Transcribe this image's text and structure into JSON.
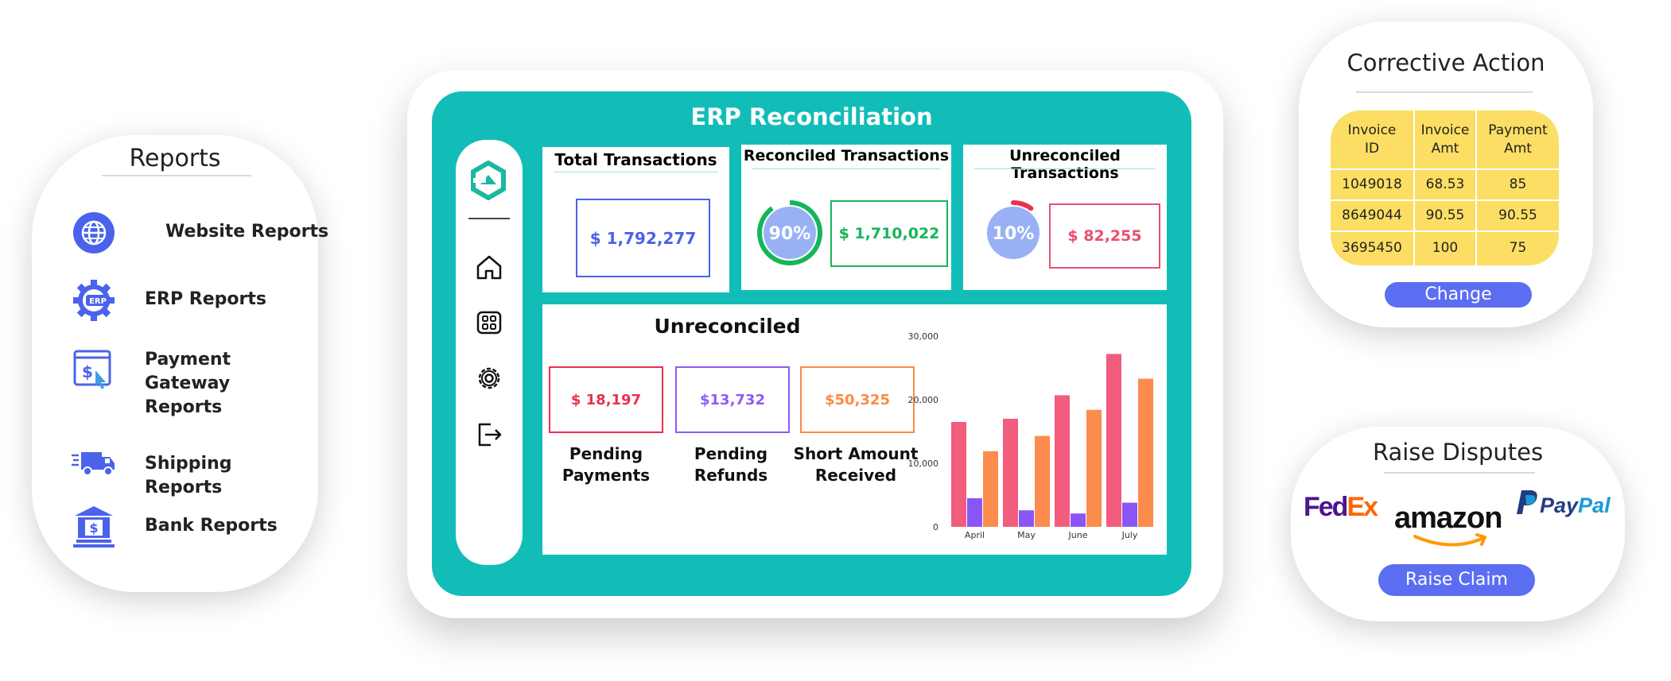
{
  "reports": {
    "title": "Reports",
    "items": [
      {
        "label": "Website Reports",
        "icon": "globe-icon"
      },
      {
        "label": "ERP Reports",
        "icon": "erp-gear-icon"
      },
      {
        "label": "Payment Gateway Reports",
        "icon": "payment-gateway-icon"
      },
      {
        "label": "Shipping Reports",
        "icon": "truck-icon"
      },
      {
        "label": "Bank Reports",
        "icon": "bank-icon"
      }
    ]
  },
  "dashboard": {
    "title": "ERP Reconciliation",
    "sidebar": [
      "logo-icon",
      "home-icon",
      "grid-icon",
      "gear-icon",
      "logout-icon"
    ],
    "total": {
      "title": "Total Transactions",
      "value": "$ 1,792,277"
    },
    "reconciled": {
      "title": "Reconciled Transactions",
      "percent": "90%",
      "percent_value": 90,
      "value": "$ 1,710,022"
    },
    "unreconciled": {
      "title": "Unreconciled Transactions",
      "percent": "10%",
      "percent_value": 10,
      "value": "$ 82,255"
    },
    "unreconciled_panel": {
      "title": "Unreconciled",
      "items": [
        {
          "value": "$ 18,197",
          "label_line1": "Pending",
          "label_line2": "Payments",
          "color": "#e8314f"
        },
        {
          "value": "$13,732",
          "label_line1": "Pending",
          "label_line2": "Refunds",
          "color": "#8f5bf2"
        },
        {
          "value": "$50,325",
          "label_line1": "Short Amount",
          "label_line2": "Received",
          "color": "#fa8c43"
        }
      ]
    }
  },
  "chart_data": {
    "type": "bar",
    "categories": [
      "April",
      "May",
      "June",
      "July"
    ],
    "yticks": [
      "0",
      "10,000",
      "20,000",
      "30,000"
    ],
    "ylim": [
      0,
      30000
    ],
    "series": [
      {
        "values": [
          16500,
          17000,
          20700,
          27200
        ],
        "color": "#f25c7d"
      },
      {
        "values": [
          4500,
          2600,
          2100,
          3800
        ],
        "color": "#8a55f7"
      },
      {
        "values": [
          11900,
          14300,
          18400,
          23300
        ],
        "color": "#fc8c4d"
      }
    ],
    "grid": false
  },
  "corrective_action": {
    "title": "Corrective Action",
    "headers": [
      [
        "Invoice",
        "ID"
      ],
      [
        "Invoice",
        "Amt"
      ],
      [
        "Payment",
        "Amt"
      ]
    ],
    "rows": [
      [
        "1049018",
        "68.53",
        "85"
      ],
      [
        "8649044",
        "90.55",
        "90.55"
      ],
      [
        "3695450",
        "100",
        "75"
      ]
    ],
    "button": "Change"
  },
  "raise_disputes": {
    "title": "Raise Disputes",
    "logos": {
      "fedex_a": "Fed",
      "fedex_b": "Ex",
      "amazon": "amazon",
      "paypal_a": "Pay",
      "paypal_b": "Pal"
    },
    "button": "Raise Claim"
  },
  "colors": {
    "teal": "#12bdb8",
    "accent_blue": "#5b6ef2",
    "table_yellow": "#fbde63"
  }
}
